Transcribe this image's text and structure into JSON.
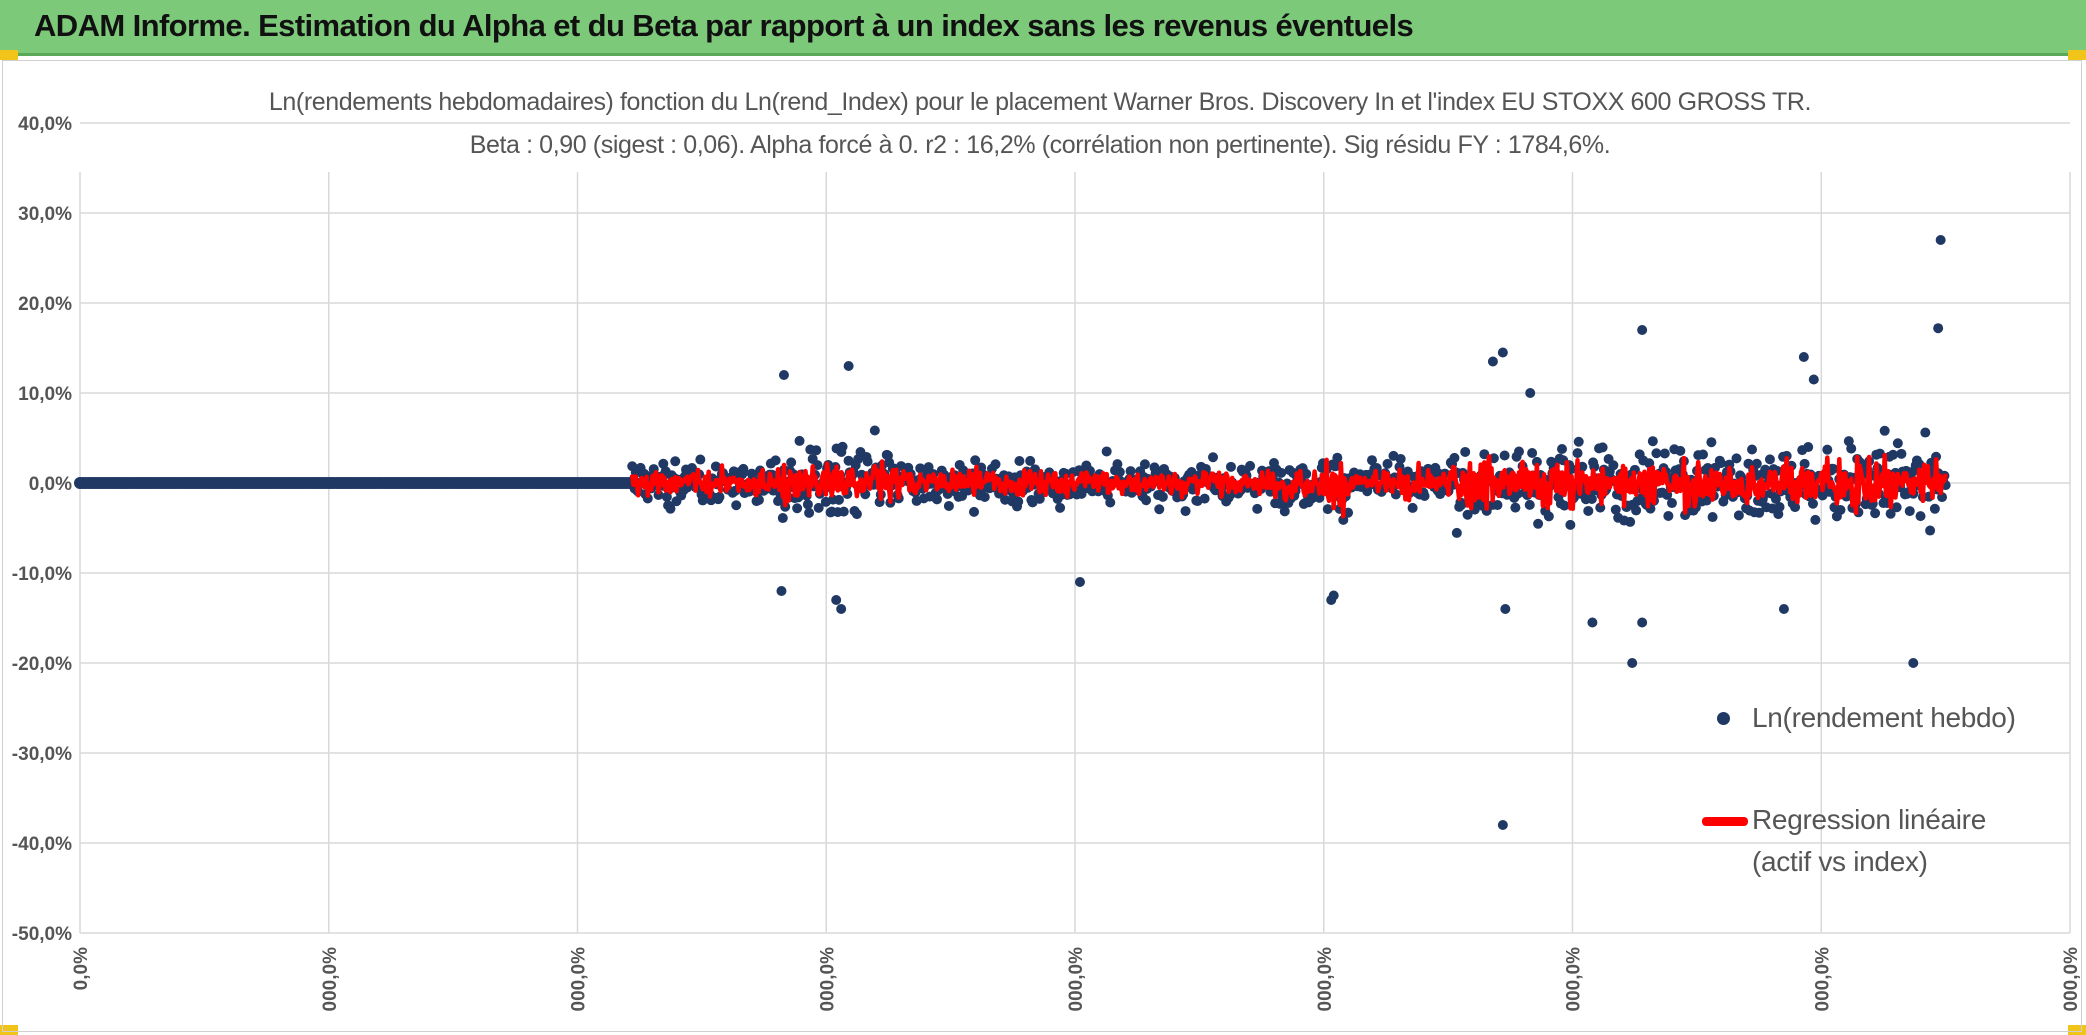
{
  "banner": {
    "title": "ADAM Informe. Estimation du Alpha et du Beta par rapport à un index sans les revenus éventuels"
  },
  "colors": {
    "banner_bg": "#7dc97a",
    "scatter": "#203864",
    "regression": "#ff0000",
    "grid": "#d9d9d9",
    "text": "#555555"
  },
  "chart_data": {
    "type": "scatter",
    "title_line1": "Ln(rendements hebdomadaires) fonction du Ln(rend_Index) pour le placement Warner Bros. Discovery In et l'index EU STOXX 600 GROSS TR.",
    "title_line2": "Beta : 0,90 (sigest : 0,06). Alpha forcé à 0. r2 : 16,2% (corrélation non pertinente). Sig résidu FY : 1784,6%.",
    "xlabel": "",
    "ylabel": "",
    "ylim": [
      -0.5,
      0.4
    ],
    "xlim": [
      0,
      8
    ],
    "y_ticks": [
      0.4,
      0.3,
      0.2,
      0.1,
      0.0,
      -0.1,
      -0.2,
      -0.3,
      -0.4,
      -0.5
    ],
    "y_tick_labels": [
      "40,0%",
      "30,0%",
      "20,0%",
      "10,0%",
      "0,0%",
      "-10,0%",
      "-20,0%",
      "-30,0%",
      "-40,0%",
      "-50,0%"
    ],
    "x_ticks": [
      0,
      1,
      2,
      3,
      4,
      5,
      6,
      7,
      8
    ],
    "x_tick_labels": [
      "0,0%",
      "000,0%",
      "000,0%",
      "000,0%",
      "000,0%",
      "000,0%",
      "000,0%",
      "000,0%",
      "000,0%"
    ],
    "grid": true,
    "legend_position": "right",
    "series": [
      {
        "name": "Ln(rendement hebdo)",
        "kind": "scatter",
        "flat_segment": {
          "x_start": 0.0,
          "x_end": 2.22,
          "y": 0.0
        },
        "active_range": {
          "x_start": 2.22,
          "x_end": 7.5,
          "n_points": 1100
        },
        "highlight_points": [
          {
            "x": 2.83,
            "y": 0.12
          },
          {
            "x": 3.09,
            "y": 0.13
          },
          {
            "x": 3.06,
            "y": -0.14
          },
          {
            "x": 2.82,
            "y": -0.12
          },
          {
            "x": 3.04,
            "y": -0.13
          },
          {
            "x": 4.02,
            "y": -0.11
          },
          {
            "x": 5.72,
            "y": 0.145
          },
          {
            "x": 5.68,
            "y": 0.135
          },
          {
            "x": 5.73,
            "y": -0.14
          },
          {
            "x": 5.03,
            "y": -0.13
          },
          {
            "x": 5.04,
            "y": -0.125
          },
          {
            "x": 6.28,
            "y": 0.17
          },
          {
            "x": 6.24,
            "y": -0.2
          },
          {
            "x": 6.28,
            "y": -0.155
          },
          {
            "x": 6.08,
            "y": -0.155
          },
          {
            "x": 6.93,
            "y": 0.14
          },
          {
            "x": 6.85,
            "y": -0.14
          },
          {
            "x": 7.37,
            "y": -0.2
          },
          {
            "x": 7.48,
            "y": 0.27
          },
          {
            "x": 7.47,
            "y": 0.172
          },
          {
            "x": 6.97,
            "y": 0.115
          },
          {
            "x": 5.83,
            "y": 0.1
          },
          {
            "x": 5.72,
            "y": -0.38
          }
        ]
      },
      {
        "name": "Regression linéaire (actif vs index)",
        "kind": "line",
        "beta": 0.9,
        "alpha": 0.0,
        "x_start": 2.22,
        "x_end": 7.5
      }
    ],
    "legend": [
      {
        "label": "Ln(rendement hebdo)",
        "marker": "dot"
      },
      {
        "label_line1": "Regression linéaire",
        "label_line2": "(actif vs index)",
        "marker": "line"
      }
    ]
  }
}
